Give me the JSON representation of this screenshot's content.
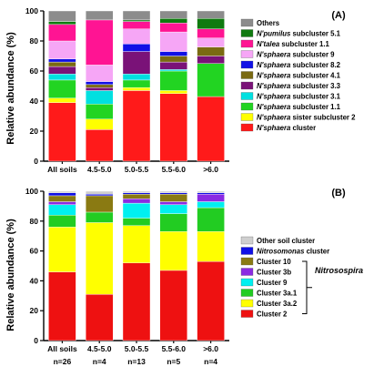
{
  "panels": [
    {
      "label": "(A)",
      "ylabel": "Relative abundance (%)",
      "yticks": [
        "0",
        "20",
        "40",
        "60",
        "80",
        "100"
      ],
      "categories": [
        "All soils",
        "4.5-5.0",
        "5.0-5.5",
        "5.5-6.0",
        ">6.0"
      ],
      "legend": [
        {
          "key": "others",
          "color": "#8c8c8c",
          "parts": [
            {
              "t": "Others",
              "i": false
            }
          ]
        },
        {
          "key": "npum51",
          "color": "#0f7a0f",
          "parts": [
            {
              "t": "N'pumilus",
              "i": true
            },
            {
              "t": " subcluster 5.1",
              "i": false
            }
          ]
        },
        {
          "key": "ntal11",
          "color": "#ff1493",
          "parts": [
            {
              "t": "N'talea",
              "i": true
            },
            {
              "t": " subcluster 1.1",
              "i": false
            }
          ]
        },
        {
          "key": "nsph9",
          "color": "#f6a6f6",
          "parts": [
            {
              "t": "N'sphaera",
              "i": true
            },
            {
              "t": " subcluster 9",
              "i": false
            }
          ]
        },
        {
          "key": "nsph82",
          "color": "#1010e6",
          "parts": [
            {
              "t": "N'sphaera",
              "i": true
            },
            {
              "t": " subcluster 8.2",
              "i": false
            }
          ]
        },
        {
          "key": "nsph41",
          "color": "#7a6a12",
          "parts": [
            {
              "t": "N'sphaera",
              "i": true
            },
            {
              "t": " subcluster 4.1",
              "i": false
            }
          ]
        },
        {
          "key": "nsph33",
          "color": "#7a1278",
          "parts": [
            {
              "t": "N'sphaera",
              "i": true
            },
            {
              "t": " subcluster 3.3",
              "i": false
            }
          ]
        },
        {
          "key": "nsph31",
          "color": "#00e0e0",
          "parts": [
            {
              "t": "N'sphaera",
              "i": true
            },
            {
              "t": " subcluster 3.1",
              "i": false
            }
          ]
        },
        {
          "key": "nsph11",
          "color": "#22d422",
          "parts": [
            {
              "t": "N'sphaera",
              "i": true
            },
            {
              "t": " subcluster 1.1",
              "i": false
            }
          ]
        },
        {
          "key": "nsphsis2",
          "color": "#ffff00",
          "parts": [
            {
              "t": "N'sphaera",
              "i": true
            },
            {
              "t": " sister subcluster 2",
              "i": false
            }
          ]
        },
        {
          "key": "nsphcl",
          "color": "#ff1a1a",
          "parts": [
            {
              "t": "N'sphaera",
              "i": true
            },
            {
              "t": " cluster",
              "i": false
            }
          ]
        }
      ]
    },
    {
      "label": "(B)",
      "ylabel": "Relative abundance (%)",
      "yticks": [
        "0",
        "20",
        "40",
        "60",
        "80",
        "100"
      ],
      "categories": [
        "All soils",
        "4.5-5.0",
        "5.0-5.5",
        "5.5-6.0",
        ">6.0"
      ],
      "nlabels": [
        "n=26",
        "n=4",
        "n=13",
        "n=5",
        "n=4"
      ],
      "bracket_label": "Nitrosospira",
      "legend": [
        {
          "key": "other",
          "color": "#cfcfcf",
          "parts": [
            {
              "t": "Other soil cluster",
              "i": false
            }
          ]
        },
        {
          "key": "nitroso",
          "color": "#1010e6",
          "parts": [
            {
              "t": "Nitrosomonas",
              "i": true
            },
            {
              "t": " cluster",
              "i": false
            }
          ]
        },
        {
          "key": "c10",
          "color": "#8a7a12",
          "parts": [
            {
              "t": "Cluster 10",
              "i": false
            }
          ]
        },
        {
          "key": "c3b",
          "color": "#8a2be2",
          "parts": [
            {
              "t": "Cluster 3b",
              "i": false
            }
          ]
        },
        {
          "key": "c9",
          "color": "#00f0f0",
          "parts": [
            {
              "t": "Cluster 9",
              "i": false
            }
          ]
        },
        {
          "key": "c3a1",
          "color": "#22cc22",
          "parts": [
            {
              "t": "Cluster 3a.1",
              "i": false
            }
          ]
        },
        {
          "key": "c3a2",
          "color": "#ffff00",
          "parts": [
            {
              "t": "Cluster 3a.2",
              "i": false
            }
          ]
        },
        {
          "key": "c2",
          "color": "#ee1111",
          "parts": [
            {
              "t": "Cluster 2",
              "i": false
            }
          ]
        }
      ]
    }
  ],
  "chart_data": [
    {
      "type": "bar",
      "stacked": true,
      "title": "(A)",
      "ylabel": "Relative abundance (%)",
      "ylim": [
        0,
        100
      ],
      "categories": [
        "All soils",
        "4.5-5.0",
        "5.0-5.5",
        "5.5-6.0",
        ">6.0"
      ],
      "series": [
        {
          "name": "N'sphaera cluster",
          "values": [
            39,
            21,
            47,
            45,
            43
          ]
        },
        {
          "name": "N'sphaera sister subcluster 2",
          "values": [
            3,
            7,
            2,
            2,
            0
          ]
        },
        {
          "name": "N'sphaera subcluster 1.1",
          "values": [
            12,
            10,
            5,
            13,
            22
          ]
        },
        {
          "name": "N'sphaera subcluster 3.1",
          "values": [
            4,
            9,
            4,
            1,
            0
          ]
        },
        {
          "name": "N'sphaera subcluster 3.3",
          "values": [
            5,
            2,
            15,
            5,
            5
          ]
        },
        {
          "name": "N'sphaera subcluster 4.1",
          "values": [
            3,
            2,
            0,
            4,
            6
          ]
        },
        {
          "name": "N'sphaera subcluster 8.2",
          "values": [
            2,
            2,
            5,
            3,
            0
          ]
        },
        {
          "name": "N'sphaera subcluster 9",
          "values": [
            12,
            11,
            10,
            13,
            6
          ]
        },
        {
          "name": "N'talea subcluster 1.1",
          "values": [
            11,
            30,
            5,
            6,
            6
          ]
        },
        {
          "name": "N'pumilus subcluster 5.1",
          "values": [
            2,
            0,
            1,
            3,
            7
          ]
        },
        {
          "name": "Others",
          "values": [
            7,
            6,
            6,
            5,
            5
          ]
        }
      ]
    },
    {
      "type": "bar",
      "stacked": true,
      "title": "(B)",
      "ylabel": "Relative abundance (%)",
      "ylim": [
        0,
        100
      ],
      "categories": [
        "All soils",
        "4.5-5.0",
        "5.0-5.5",
        "5.5-6.0",
        ">6.0"
      ],
      "series": [
        {
          "name": "Cluster 2",
          "values": [
            46,
            31,
            52,
            47,
            53
          ]
        },
        {
          "name": "Cluster 3a.2",
          "values": [
            30,
            48,
            25,
            26,
            20
          ]
        },
        {
          "name": "Cluster 3a.1",
          "values": [
            8,
            7,
            5,
            12,
            16
          ]
        },
        {
          "name": "Cluster 9",
          "values": [
            7,
            0,
            10,
            6,
            4
          ]
        },
        {
          "name": "Cluster 3b",
          "values": [
            2,
            0,
            3,
            2,
            5
          ]
        },
        {
          "name": "Cluster 10",
          "values": [
            4,
            11,
            3,
            5,
            0
          ]
        },
        {
          "name": "Nitrosomonas cluster",
          "values": [
            2,
            1,
            1,
            1,
            1
          ]
        },
        {
          "name": "Other soil cluster",
          "values": [
            1,
            2,
            1,
            1,
            1
          ]
        }
      ]
    }
  ]
}
